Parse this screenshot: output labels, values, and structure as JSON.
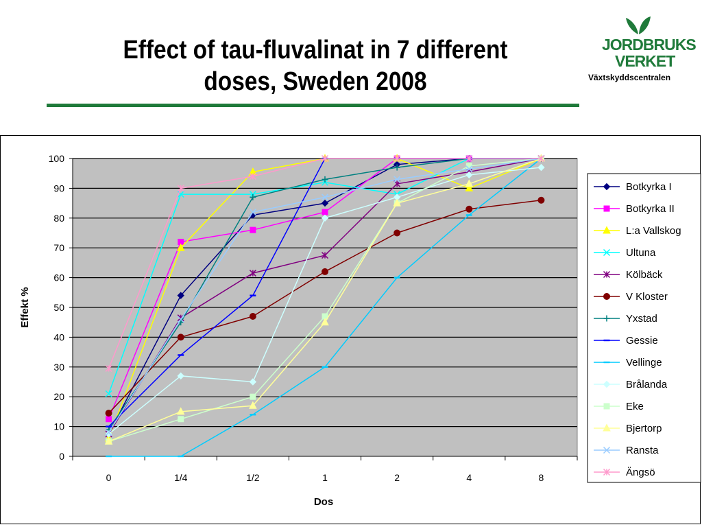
{
  "slide": {
    "title_line1": "Effect of tau-fluvalinat in 7 different",
    "title_line2": "doses, Sweden 2008",
    "logo_line1": "JORDBRUKS",
    "logo_line2": "VERKET",
    "logo_sub": "Växtskyddscentralen",
    "accent_color": "#1f7a3a"
  },
  "chart_data": {
    "type": "line",
    "title": "",
    "xlabel": "Dos",
    "ylabel": "Effekt %",
    "categories": [
      "0",
      "1/4",
      "1/2",
      "1",
      "2",
      "4",
      "8"
    ],
    "ylim": [
      0,
      100
    ],
    "yticks": [
      0,
      10,
      20,
      30,
      40,
      50,
      60,
      70,
      80,
      90,
      100
    ],
    "grid": true,
    "plot_background": "#c0c0c0",
    "legend_position": "right",
    "series": [
      {
        "name": "Botkyrka I",
        "color": "#000080",
        "marker": "diamond",
        "values": [
          7.5,
          54,
          81,
          85,
          98,
          100,
          100
        ]
      },
      {
        "name": "Botkyrka II",
        "color": "#ff00ff",
        "marker": "square",
        "values": [
          12.5,
          72,
          76,
          82,
          100,
          100,
          100
        ]
      },
      {
        "name": "L:a Vallskog",
        "color": "#ffff00",
        "marker": "triangle",
        "values": [
          6,
          70,
          95.5,
          100,
          100,
          90,
          100
        ]
      },
      {
        "name": "Ultuna",
        "color": "#00ffff",
        "marker": "x",
        "values": [
          21,
          88,
          88,
          92,
          88,
          100,
          100
        ]
      },
      {
        "name": "Kölbäck",
        "color": "#800080",
        "marker": "star",
        "values": [
          7.5,
          46.5,
          61.5,
          67.5,
          91.5,
          95.5,
          100
        ]
      },
      {
        "name": "V Kloster",
        "color": "#800000",
        "marker": "circle",
        "values": [
          14.5,
          40,
          47,
          62,
          75,
          83,
          86
        ]
      },
      {
        "name": "Yxstad",
        "color": "#008080",
        "marker": "plus",
        "values": [
          9,
          45,
          87,
          93,
          97,
          100,
          100
        ]
      },
      {
        "name": "Gessie",
        "color": "#0000ff",
        "marker": "dash",
        "values": [
          10,
          34,
          54,
          100,
          100,
          100,
          100
        ]
      },
      {
        "name": "Vellinge",
        "color": "#00ccff",
        "marker": "dash",
        "values": [
          0,
          0,
          14,
          30,
          60,
          81,
          100
        ]
      },
      {
        "name": "Brålanda",
        "color": "#ccffff",
        "marker": "diamond",
        "values": [
          7.5,
          27,
          25,
          80,
          87,
          94.5,
          97
        ]
      },
      {
        "name": "Eke",
        "color": "#ccffcc",
        "marker": "square",
        "values": [
          5,
          12.5,
          20,
          47,
          85,
          97.5,
          100
        ]
      },
      {
        "name": "Bjertorp",
        "color": "#ffff99",
        "marker": "triangle",
        "values": [
          5,
          15,
          17,
          45,
          85,
          91.5,
          100
        ]
      },
      {
        "name": "Ransta",
        "color": "#99ccff",
        "marker": "x",
        "values": [
          8,
          46,
          82,
          87,
          93,
          96.5,
          100
        ]
      },
      {
        "name": "Ängsö",
        "color": "#ff99cc",
        "marker": "star",
        "values": [
          29.5,
          90,
          94,
          100,
          100,
          100,
          100
        ]
      }
    ]
  }
}
